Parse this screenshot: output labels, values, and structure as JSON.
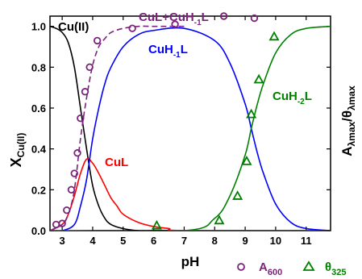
{
  "chart_data": {
    "type": "line",
    "xlabel": "pH",
    "ylabel_left": {
      "main": "X",
      "sub": "Cu(II)"
    },
    "ylabel_right": {
      "main1": "A",
      "sub1": "λmax",
      "slash": "/θ",
      "sub2": "λmax"
    },
    "xlim": [
      2.6,
      11.8
    ],
    "ylim": [
      0,
      1.05
    ],
    "xticks": [
      "3",
      "4",
      "5",
      "6",
      "7",
      "8",
      "9",
      "10",
      "11"
    ],
    "yticks": [
      "0.0",
      "0.2",
      "0.4",
      "0.6",
      "0.8",
      "1.0"
    ],
    "series": [
      {
        "name": "Cu(II)",
        "color": "#000000",
        "x": [
          2.6,
          2.8,
          3.0,
          3.2,
          3.4,
          3.6,
          3.8,
          4.0,
          4.2,
          4.4,
          4.6,
          5.0,
          5.5,
          6.0,
          7.0,
          11.8
        ],
        "y": [
          1.0,
          0.99,
          0.97,
          0.92,
          0.8,
          0.6,
          0.4,
          0.22,
          0.12,
          0.06,
          0.03,
          0.01,
          0.0,
          0.0,
          0.0,
          0.0
        ]
      },
      {
        "name": "CuL",
        "color": "#ff0000",
        "x": [
          2.6,
          3.0,
          3.2,
          3.4,
          3.6,
          3.8,
          4.0,
          4.2,
          4.4,
          4.6,
          4.8,
          5.0,
          5.5,
          6.0,
          6.5,
          7.0,
          11.8
        ],
        "y": [
          0.0,
          0.03,
          0.08,
          0.17,
          0.28,
          0.35,
          0.33,
          0.28,
          0.22,
          0.16,
          0.12,
          0.08,
          0.04,
          0.02,
          0.01,
          0.0,
          0.0
        ]
      },
      {
        "name": "CuH-1L",
        "color": "#0000ff",
        "x": [
          2.6,
          3.0,
          3.4,
          3.6,
          3.8,
          4.0,
          4.2,
          4.4,
          4.6,
          5.0,
          5.5,
          6.0,
          7.0,
          8.0,
          8.5,
          9.0,
          9.2,
          9.4,
          9.6,
          10.0,
          10.5,
          11.0,
          11.8
        ],
        "y": [
          0.0,
          0.0,
          0.03,
          0.12,
          0.25,
          0.45,
          0.6,
          0.72,
          0.8,
          0.9,
          0.96,
          0.98,
          0.99,
          0.93,
          0.82,
          0.62,
          0.5,
          0.38,
          0.28,
          0.13,
          0.04,
          0.01,
          0.0
        ]
      },
      {
        "name": "CuH-2L",
        "color": "#008000",
        "x": [
          2.6,
          7.0,
          8.0,
          8.5,
          9.0,
          9.2,
          9.4,
          9.6,
          10.0,
          10.5,
          11.0,
          11.8
        ],
        "y": [
          0.0,
          0.0,
          0.06,
          0.17,
          0.37,
          0.5,
          0.62,
          0.72,
          0.87,
          0.96,
          0.99,
          1.0
        ]
      },
      {
        "name": "CuL+CuH-1L",
        "color": "#7b237b",
        "dashed": true,
        "x": [
          2.6,
          3.0,
          3.2,
          3.4,
          3.6,
          3.8,
          4.0,
          4.2,
          4.4,
          4.6,
          5.0,
          5.5,
          6.0,
          7.0
        ],
        "y": [
          0.0,
          0.03,
          0.08,
          0.2,
          0.45,
          0.65,
          0.81,
          0.9,
          0.94,
          0.97,
          0.99,
          1.0,
          1.0,
          1.0
        ]
      }
    ],
    "scatter": [
      {
        "name": "A600",
        "marker": "circle",
        "color": "#7b237b",
        "x": [
          2.8,
          3.0,
          3.15,
          3.3,
          3.4,
          3.5,
          3.6,
          3.75,
          3.9,
          4.15,
          5.3,
          6.7,
          8.3,
          9.3
        ],
        "y": [
          0.03,
          0.035,
          0.1,
          0.2,
          0.28,
          0.38,
          0.55,
          0.68,
          0.8,
          0.93,
          0.99,
          1.01,
          1.05,
          1.04
        ]
      },
      {
        "name": "θ325",
        "marker": "triangle",
        "color": "#008000",
        "x": [
          6.1,
          8.15,
          8.75,
          9.05,
          9.2,
          9.45,
          9.95
        ],
        "y": [
          0.025,
          0.05,
          0.17,
          0.34,
          0.57,
          0.74,
          0.95
        ]
      }
    ]
  },
  "labels": {
    "cu2": "Cu(II)",
    "cul": "CuL",
    "cuh1l": {
      "main": "CuH",
      "sub": "-1",
      "tail": "L"
    },
    "cuh2l": {
      "main": "CuH",
      "sub": "-2",
      "tail": "L"
    },
    "sum": {
      "main": "CuL+CuH",
      "sub": "-1",
      "tail": "L"
    }
  },
  "legend": {
    "a600": {
      "main": "A",
      "sub": "600"
    },
    "theta325": {
      "main": "θ",
      "sub": "325"
    }
  }
}
